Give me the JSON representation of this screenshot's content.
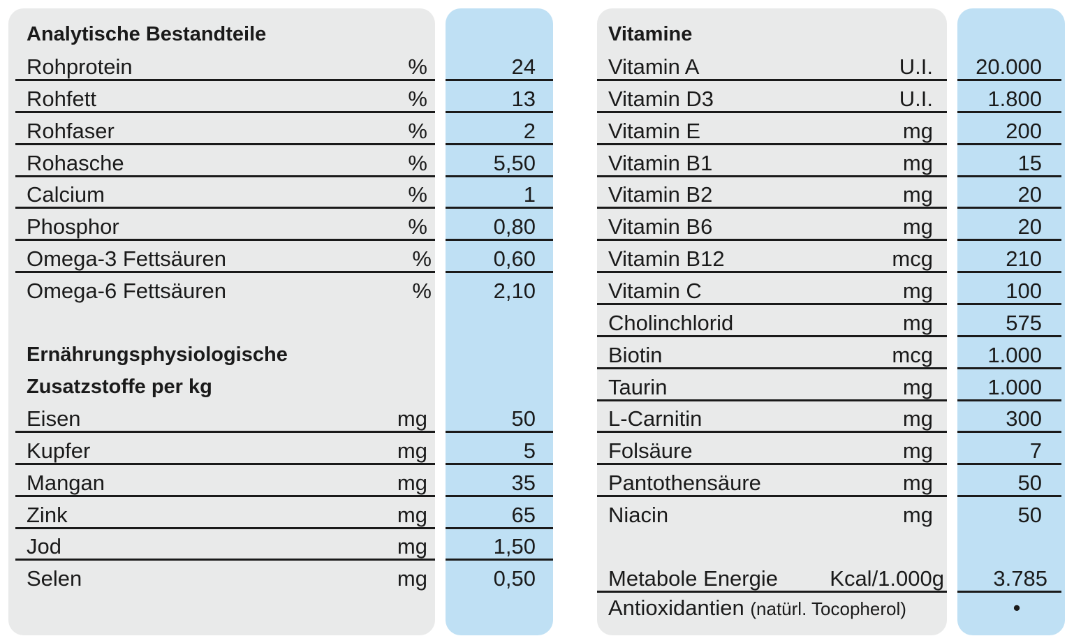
{
  "left": {
    "heading": "Analytische Bestandteile",
    "rows": [
      {
        "name": "Rohprotein",
        "unit": "%",
        "value": "24"
      },
      {
        "name": "Rohfett",
        "unit": "%",
        "value": "13"
      },
      {
        "name": "Rohfaser",
        "unit": "%",
        "value": "2"
      },
      {
        "name": "Rohasche",
        "unit": "%",
        "value": "5,50"
      },
      {
        "name": "Calcium",
        "unit": "%",
        "value": "1"
      },
      {
        "name": "Phosphor",
        "unit": "%",
        "value": "0,80"
      },
      {
        "name": "Omega-3 Fettsäuren",
        "unit": "%",
        "value": "0,60"
      },
      {
        "name": "Omega-6 Fettsäuren",
        "unit": "%",
        "value": "2,10"
      }
    ],
    "heading2_line1": "Ernährungsphysiologische",
    "heading2_line2": "Zusatzstoffe per kg",
    "rows2": [
      {
        "name": "Eisen",
        "unit": "mg",
        "value": "50"
      },
      {
        "name": "Kupfer",
        "unit": "mg",
        "value": "5"
      },
      {
        "name": "Mangan",
        "unit": "mg",
        "value": "35"
      },
      {
        "name": "Zink",
        "unit": "mg",
        "value": "65"
      },
      {
        "name": "Jod",
        "unit": "mg",
        "value": "1,50"
      },
      {
        "name": "Selen",
        "unit": "mg",
        "value": "0,50"
      }
    ]
  },
  "right": {
    "heading": "Vitamine",
    "rows": [
      {
        "name": "Vitamin A",
        "unit": "U.I.",
        "value": "20.000"
      },
      {
        "name": "Vitamin D3",
        "unit": "U.I.",
        "value": "1.800"
      },
      {
        "name": "Vitamin E",
        "unit": "mg",
        "value": "200"
      },
      {
        "name": "Vitamin B1",
        "unit": "mg",
        "value": "15"
      },
      {
        "name": "Vitamin B2",
        "unit": "mg",
        "value": "20"
      },
      {
        "name": "Vitamin B6",
        "unit": "mg",
        "value": "20"
      },
      {
        "name": "Vitamin B12",
        "unit": "mcg",
        "value": "210"
      },
      {
        "name": "Vitamin C",
        "unit": "mg",
        "value": "100"
      },
      {
        "name": "Cholinchlorid",
        "unit": "mg",
        "value": "575"
      },
      {
        "name": "Biotin",
        "unit": "mcg",
        "value": "1.000"
      },
      {
        "name": "Taurin",
        "unit": "mg",
        "value": "1.000"
      },
      {
        "name": "L-Carnitin",
        "unit": "mg",
        "value": "300"
      },
      {
        "name": "Folsäure",
        "unit": "mg",
        "value": "7"
      },
      {
        "name": "Pantothensäure",
        "unit": "mg",
        "value": "50"
      },
      {
        "name": "Niacin",
        "unit": "mg",
        "value": "50"
      }
    ],
    "energy": {
      "name": "Metabole Energie",
      "unit": "Kcal/1.000g",
      "value": "3.785"
    },
    "antiox": {
      "name": "Antioxidantien",
      "note": "(natürl. Tocopherol)",
      "value": "•"
    }
  }
}
